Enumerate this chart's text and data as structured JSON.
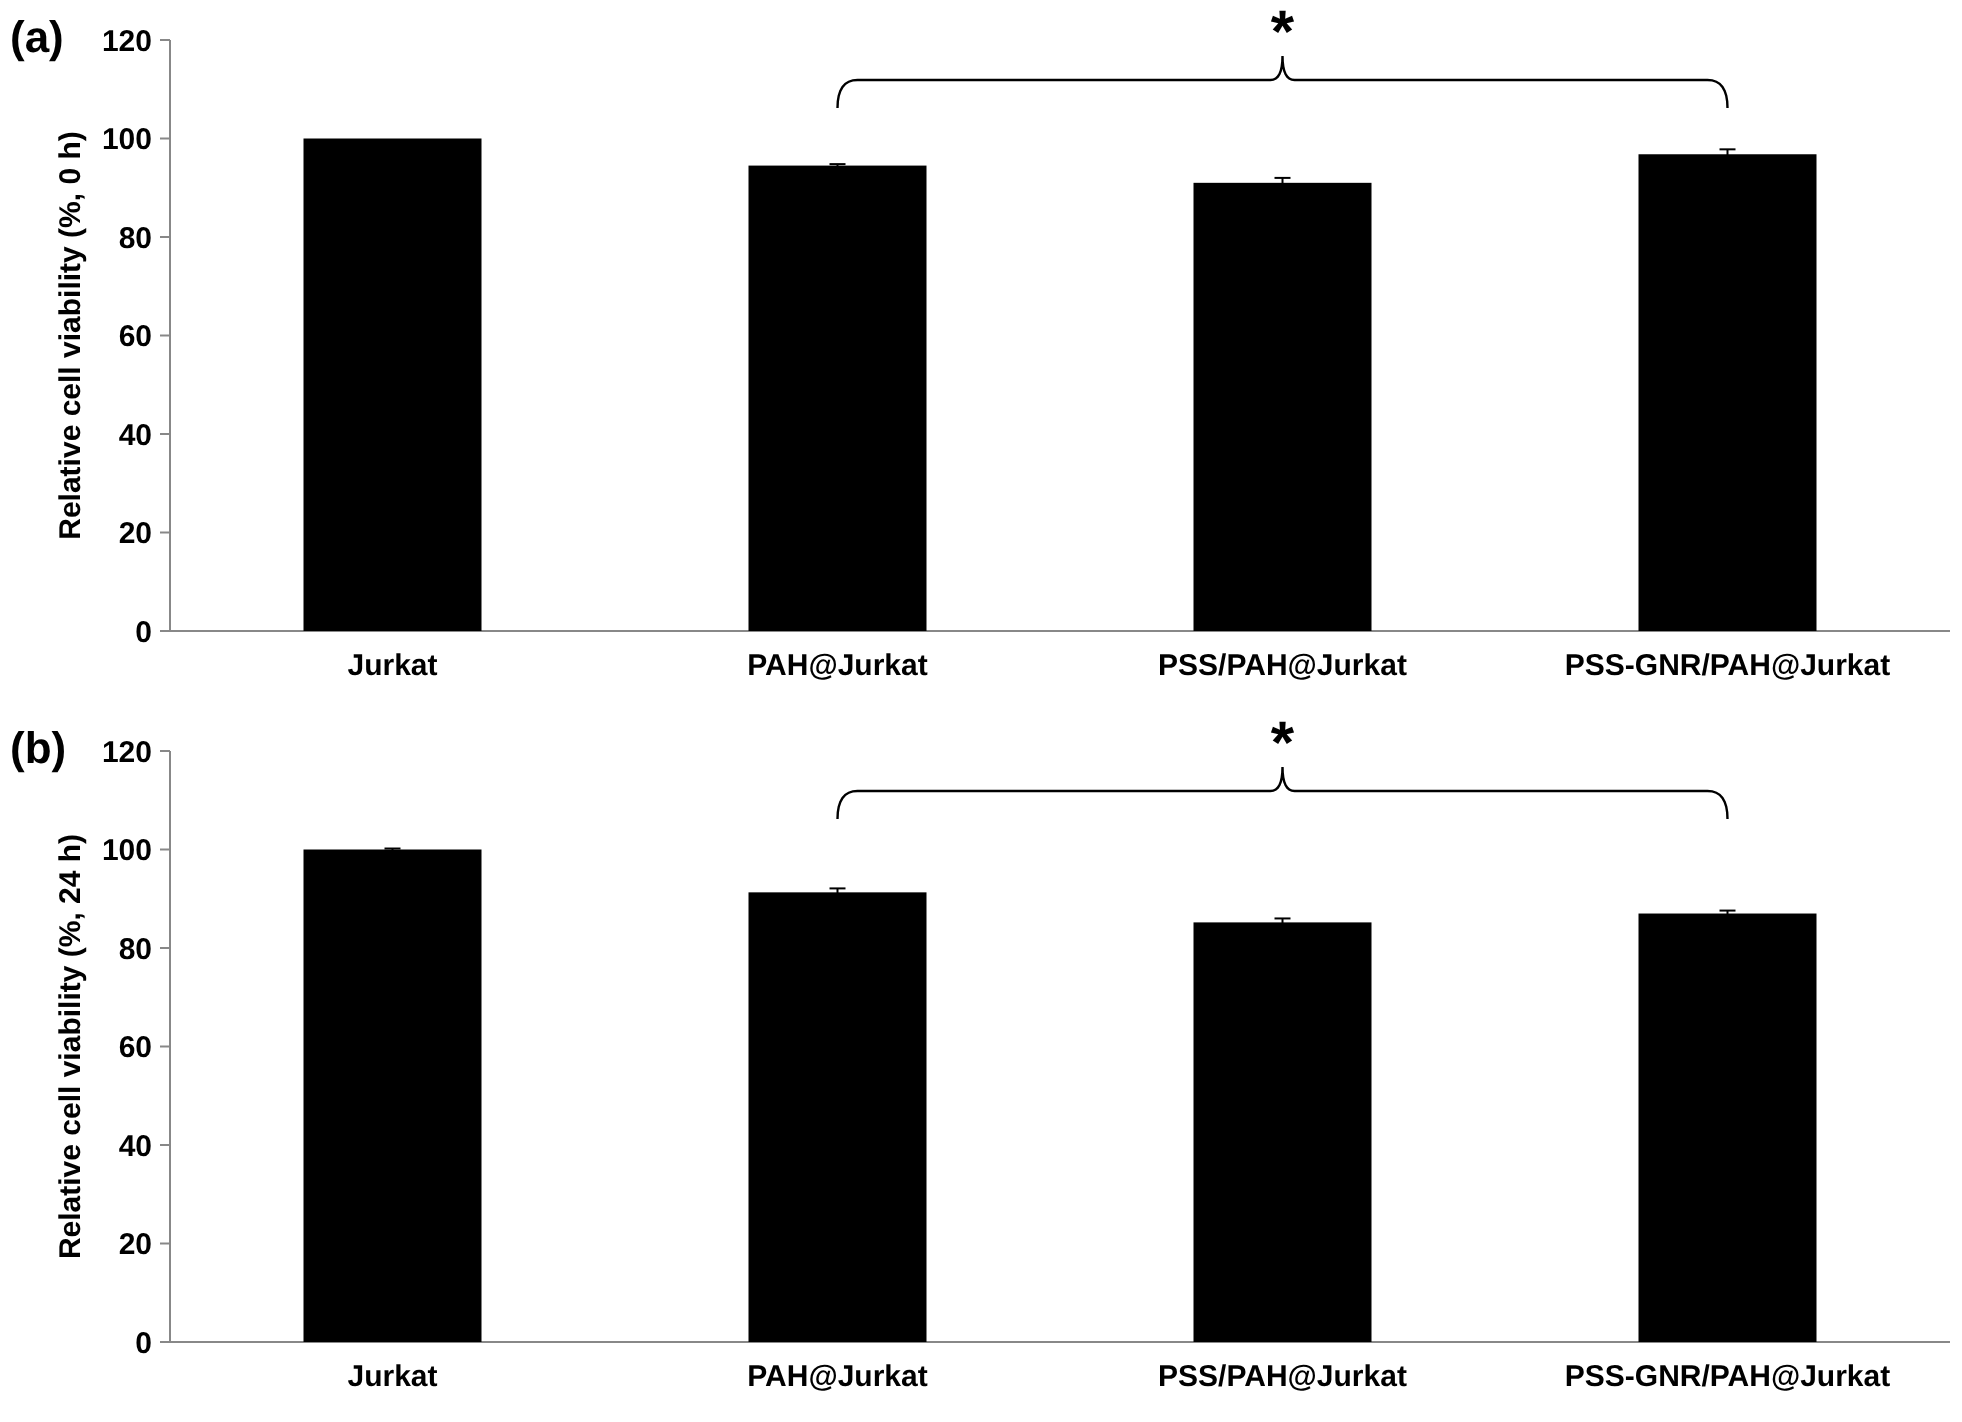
{
  "chart_data": [
    {
      "type": "bar",
      "title": "(a)",
      "ylabel": "Relative cell viability (%, 0 h)",
      "categories": [
        "Jurkat",
        "PAH@Jurkat",
        "PSS/PAH@Jurkat",
        "PSS-GNR/PAH@Jurkat"
      ],
      "values": [
        100,
        94.5,
        91,
        96.8
      ],
      "errors": [
        null,
        0.3,
        1,
        1
      ],
      "color": "#000000",
      "ylim": [
        0,
        120
      ],
      "yticks": [
        0,
        20,
        40,
        60,
        80,
        100,
        120
      ],
      "annotations": [
        "*"
      ]
    },
    {
      "type": "bar",
      "title": "(b)",
      "ylabel": "Relative cell viability (%, 24 h)",
      "categories": [
        "Jurkat",
        "PAH@Jurkat",
        "PSS/PAH@Jurkat",
        "PSS-GNR/PAH@Jurkat"
      ],
      "values": [
        100,
        91.3,
        85.2,
        87
      ],
      "errors": [
        0.2,
        0.8,
        0.8,
        0.6
      ],
      "color": "#000000",
      "ylim": [
        0,
        120
      ],
      "yticks": [
        0,
        20,
        40,
        60,
        80,
        100,
        120
      ],
      "annotations": [
        "*"
      ]
    }
  ]
}
